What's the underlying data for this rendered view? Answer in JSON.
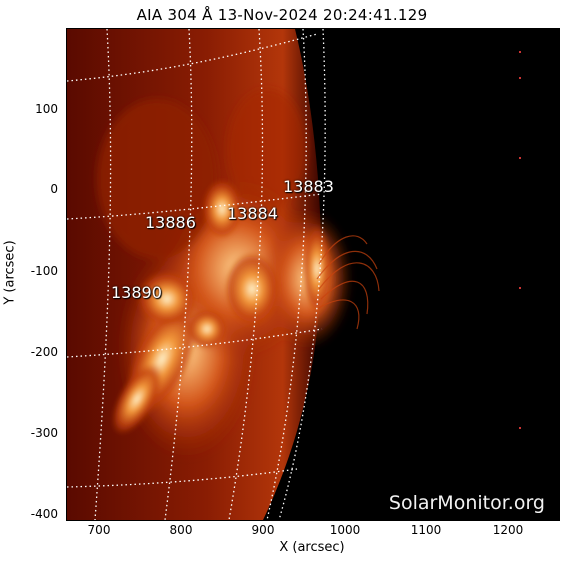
{
  "title": "AIA 304 Å 13-Nov-2024 20:24:41.129",
  "watermark": "SolarMonitor.org",
  "axes": {
    "xlabel": "X (arcsec)",
    "ylabel": "Y (arcsec)",
    "xticks": [
      "700",
      "800",
      "900",
      "1000",
      "1100",
      "1200"
    ],
    "yticks": [
      "100",
      "0",
      "-100",
      "-200",
      "-300",
      "-400"
    ]
  },
  "active_regions": [
    {
      "id": "13883"
    },
    {
      "id": "13884"
    },
    {
      "id": "13886"
    },
    {
      "id": "13890"
    }
  ],
  "colors": {
    "background": "#000000",
    "emission_bright": "#fff3d6",
    "emission_mid": "#e0601a",
    "emission_dark": "#6a0f00",
    "grid": "#ffffff"
  }
}
